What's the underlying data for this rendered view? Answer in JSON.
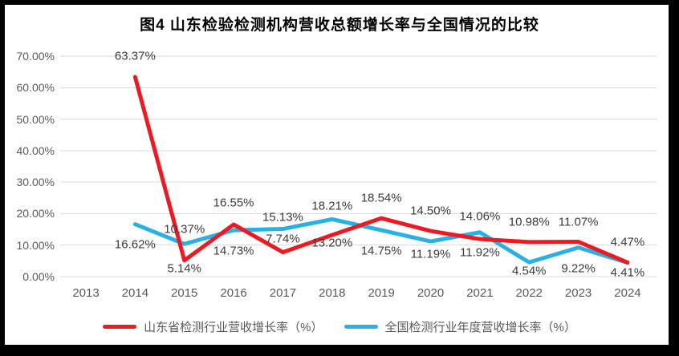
{
  "chart_data": {
    "type": "line",
    "title": "图4  山东检验检测机构营收总额增长率与全国情况的比较",
    "categories": [
      "2013",
      "2014",
      "2015",
      "2016",
      "2017",
      "2018",
      "2019",
      "2020",
      "2021",
      "2022",
      "2023",
      "2024"
    ],
    "series": [
      {
        "key": "shandong",
        "name": "山东省检测行业营收增长率（%）",
        "color": "#ec1b23",
        "values": [
          null,
          63.37,
          5.14,
          16.55,
          7.74,
          13.2,
          18.54,
          14.5,
          11.92,
          10.98,
          11.07,
          4.47
        ],
        "label_dy": [
          null,
          -26,
          10,
          -27,
          -17,
          10,
          -25,
          -25,
          17,
          -25,
          -25,
          -25
        ]
      },
      {
        "key": "national",
        "name": "全国检测行业年度营收增长率（%）",
        "color": "#2ab0e3",
        "values": [
          null,
          16.62,
          10.37,
          14.73,
          15.13,
          18.21,
          14.75,
          11.19,
          14.06,
          4.54,
          9.22,
          4.41
        ],
        "label_dy": [
          null,
          25,
          -18,
          26,
          -15,
          -16,
          26,
          16,
          -20,
          11,
          26,
          12
        ]
      }
    ],
    "ylim": [
      0,
      70
    ],
    "ytick_step": 10,
    "ytick_labels": [
      "70.00%",
      "60.00%",
      "50.00%",
      "40.00%",
      "30.00%",
      "20.00%",
      "10.00%",
      "0.00%"
    ],
    "grid": true,
    "legend_position": "bottom",
    "colors": {
      "grid": "#d9d9d9",
      "axis_text": "#595959",
      "data_label": "#3b3b3b",
      "title": "#000000",
      "background": "#ffffff",
      "frame": "#000000"
    }
  }
}
